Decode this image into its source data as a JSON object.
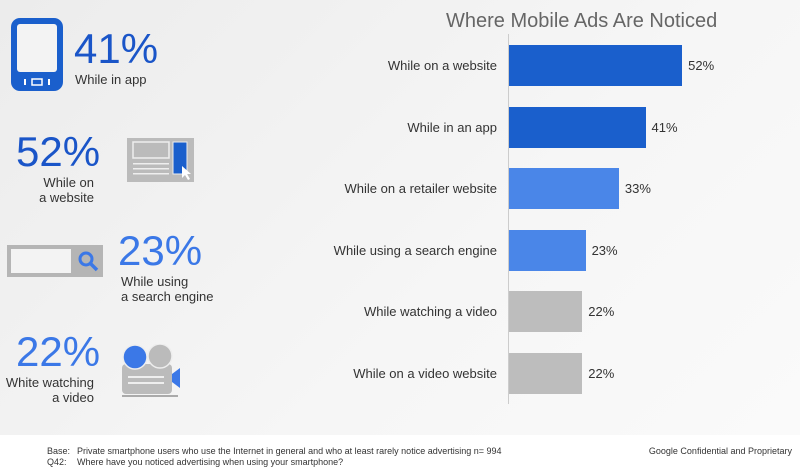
{
  "chart_data": {
    "type": "bar",
    "orientation": "horizontal",
    "title": "Where Mobile Ads Are Noticed",
    "categories": [
      "While on a website",
      "While in an app",
      "While on a retailer website",
      "While using a search engine",
      "While watching a video",
      "While on a video website"
    ],
    "values": [
      52,
      41,
      33,
      23,
      22,
      22
    ],
    "labels": [
      "52%",
      "41%",
      "33%",
      "23%",
      "22%",
      "22%"
    ],
    "colors": [
      "#1a5fcc",
      "#1a5fcc",
      "#4a86e8",
      "#4a86e8",
      "#bdbdbd",
      "#bdbdbd"
    ],
    "xlim": [
      0,
      100
    ],
    "unit": "%"
  },
  "highlights": [
    {
      "value": "41%",
      "label": "While in app"
    },
    {
      "value": "52%",
      "label_line1": "While on",
      "label_line2": "a website"
    },
    {
      "value": "23%",
      "label_line1": "While using",
      "label_line2": "a search engine"
    },
    {
      "value": "22%",
      "label_line1": "White watching",
      "label_line2": "a video"
    }
  ],
  "footer": {
    "base_label": "Base:",
    "base_text": "Private smartphone users who use the Internet in general and who at least rarely notice advertising n= 994",
    "q_label": "Q42:",
    "q_text": "Where have you noticed advertising when using your smartphone?",
    "confidential": "Google Confidential and Proprietary"
  }
}
